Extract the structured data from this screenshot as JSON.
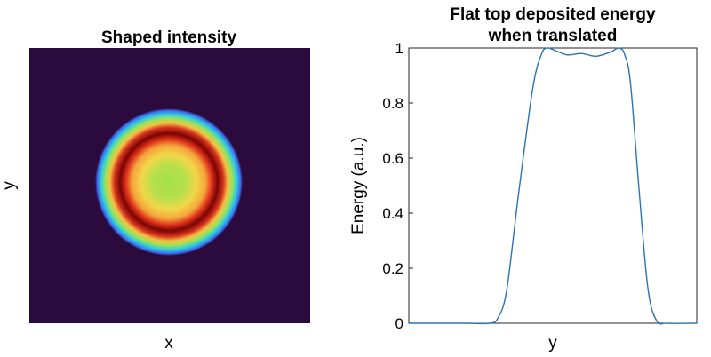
{
  "chart_data": [
    {
      "type": "heatmap",
      "title": "Shaped intensity",
      "xlabel": "x",
      "ylabel": "y",
      "colormap": [
        "#2b0a3d",
        "#3b6cf0",
        "#2ecbdf",
        "#9be35a",
        "#f5c043",
        "#e1341c",
        "#7a0403"
      ],
      "background_color": "#2b0a3d",
      "intensity_profile": {
        "description": "ring-shaped intensity (radial profile, radius normalized to outer edge)",
        "r": [
          0.0,
          0.25,
          0.5,
          0.65,
          0.72,
          0.8,
          0.9,
          1.0
        ],
        "intensity": [
          0.55,
          0.57,
          0.68,
          0.9,
          1.0,
          0.88,
          0.5,
          0.0
        ]
      },
      "grid": false
    },
    {
      "type": "line",
      "title": "Flat top deposited energy when translated",
      "title_lines": [
        "Flat top deposited energy",
        "when translated"
      ],
      "xlabel": "y",
      "ylabel": "Energy (a.u.)",
      "ylim": [
        0,
        1
      ],
      "yticks": [
        "0",
        "0.2",
        "0.4",
        "0.6",
        "0.8",
        "1"
      ],
      "xlim": [
        0,
        100
      ],
      "series": [
        {
          "color": "#2a73b5",
          "x": [
            0,
            10,
            20,
            28,
            31,
            34,
            38,
            43,
            46,
            48,
            51,
            55,
            60,
            65,
            70,
            73,
            75,
            77,
            80,
            83,
            86,
            90,
            100
          ],
          "y": [
            0,
            0,
            0,
            0,
            0.02,
            0.12,
            0.46,
            0.85,
            0.975,
            1.0,
            0.99,
            0.975,
            0.98,
            0.97,
            0.985,
            1.0,
            0.975,
            0.87,
            0.48,
            0.13,
            0.01,
            0,
            0
          ]
        }
      ],
      "grid": false
    }
  ]
}
